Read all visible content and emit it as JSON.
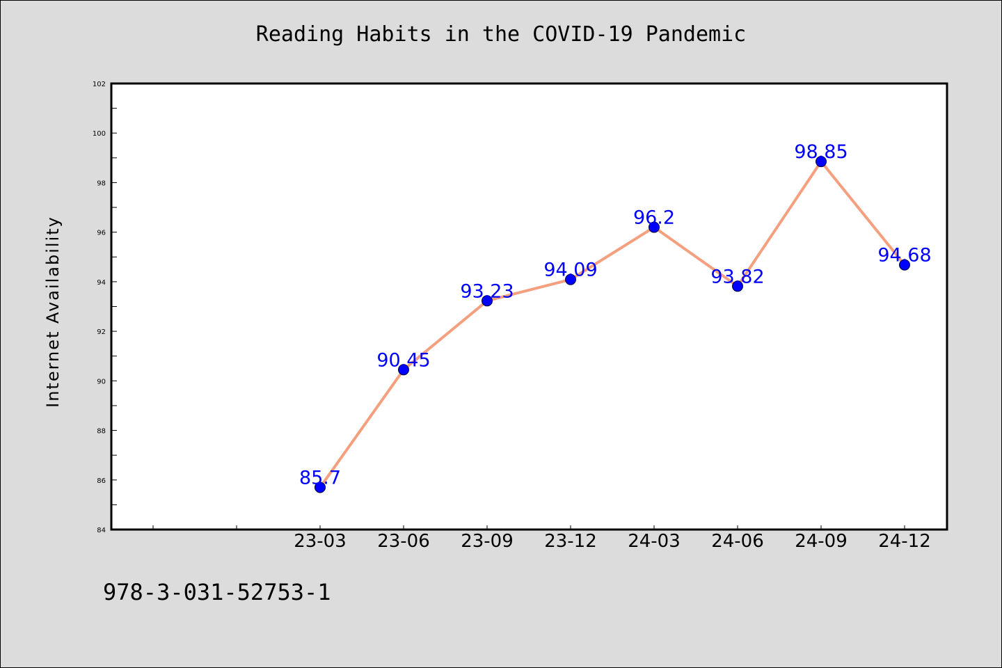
{
  "chart_data": {
    "type": "line",
    "title": "Reading Habits in the COVID-19 Pandemic",
    "xlabel": "",
    "ylabel": "Internet Availability",
    "categories": [
      "",
      "",
      "23-03",
      "23-06",
      "23-09",
      "23-12",
      "24-03",
      "24-06",
      "24-09",
      "24-12"
    ],
    "series": [
      {
        "values": [
          null,
          null,
          85.7,
          90.45,
          93.23,
          94.09,
          96.2,
          93.82,
          98.85,
          94.68
        ],
        "labels": [
          "",
          "",
          "85.7",
          "90.45",
          "93.23",
          "94.09",
          "96.2",
          "93.82",
          "98.85",
          "94.68"
        ]
      }
    ],
    "ylim": [
      84,
      102
    ],
    "yticks": [
      "84",
      "86",
      "88",
      "90",
      "92",
      "94",
      "96",
      "98",
      "100",
      "102"
    ],
    "grid": false,
    "line_color": "#f4a07e",
    "marker_color": "#0000ff",
    "label_color": "#0000ff",
    "background_color": "#dcdcdc",
    "plot_background_color": "#ffffff"
  },
  "footer": {
    "isbn": "978-3-031-52753-1"
  }
}
